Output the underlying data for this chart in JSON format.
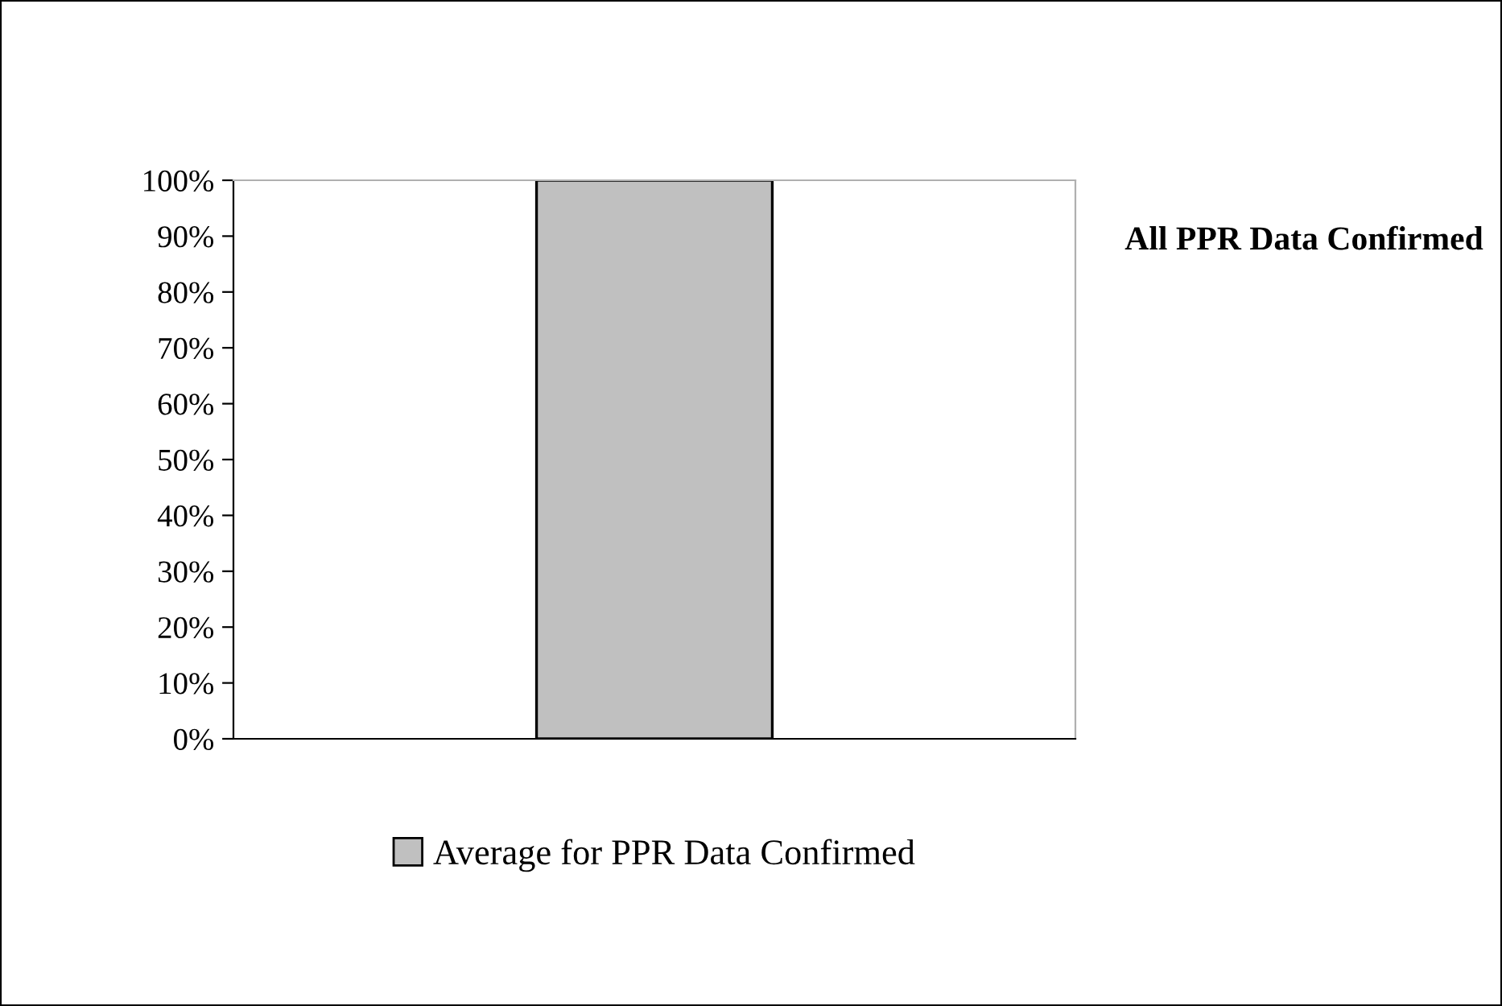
{
  "chart_data": {
    "type": "bar",
    "title": "All PPR Data Confirmed",
    "categories": [
      null
    ],
    "series": [
      {
        "name": "Average for PPR Data Confirmed",
        "color": "#c0c0c0",
        "values": [
          100
        ]
      }
    ],
    "ylim": [
      0,
      100
    ],
    "yticks": [
      {
        "value": 0,
        "label": "0%"
      },
      {
        "value": 10,
        "label": "10%"
      },
      {
        "value": 20,
        "label": "20%"
      },
      {
        "value": 30,
        "label": "30%"
      },
      {
        "value": 40,
        "label": "40%"
      },
      {
        "value": 50,
        "label": "50%"
      },
      {
        "value": 60,
        "label": "60%"
      },
      {
        "value": 70,
        "label": "70%"
      },
      {
        "value": 80,
        "label": "80%"
      },
      {
        "value": 90,
        "label": "90%"
      },
      {
        "value": 100,
        "label": "100%"
      }
    ],
    "legend": "bottom"
  }
}
